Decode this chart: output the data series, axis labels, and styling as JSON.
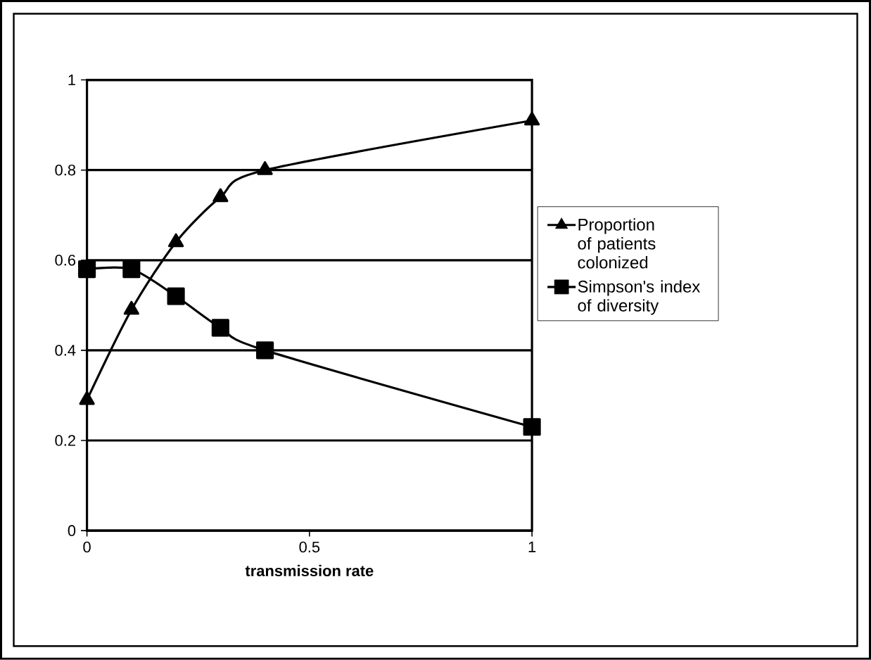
{
  "chart_data": {
    "type": "line",
    "xlabel": "transmission rate",
    "xlim": [
      0,
      1
    ],
    "xticks": [
      0,
      0.5,
      1
    ],
    "ylim": [
      0,
      1
    ],
    "yticks": [
      0,
      0.2,
      0.4,
      0.6,
      0.8,
      1
    ],
    "grid": "y",
    "legend": "right",
    "line_style": "solid",
    "series": [
      {
        "name": "Proportion of patients colonized",
        "color": "#000000",
        "marker": "triangle",
        "x": [
          0,
          0.1,
          0.2,
          0.3,
          0.4,
          1
        ],
        "values": [
          0.29,
          0.49,
          0.64,
          0.74,
          0.8,
          0.91
        ]
      },
      {
        "name": "Simpson's index of diversity",
        "color": "#000000",
        "marker": "square",
        "x": [
          0,
          0.1,
          0.2,
          0.3,
          0.4,
          1
        ],
        "values": [
          0.58,
          0.58,
          0.52,
          0.45,
          0.4,
          0.23
        ]
      }
    ]
  }
}
